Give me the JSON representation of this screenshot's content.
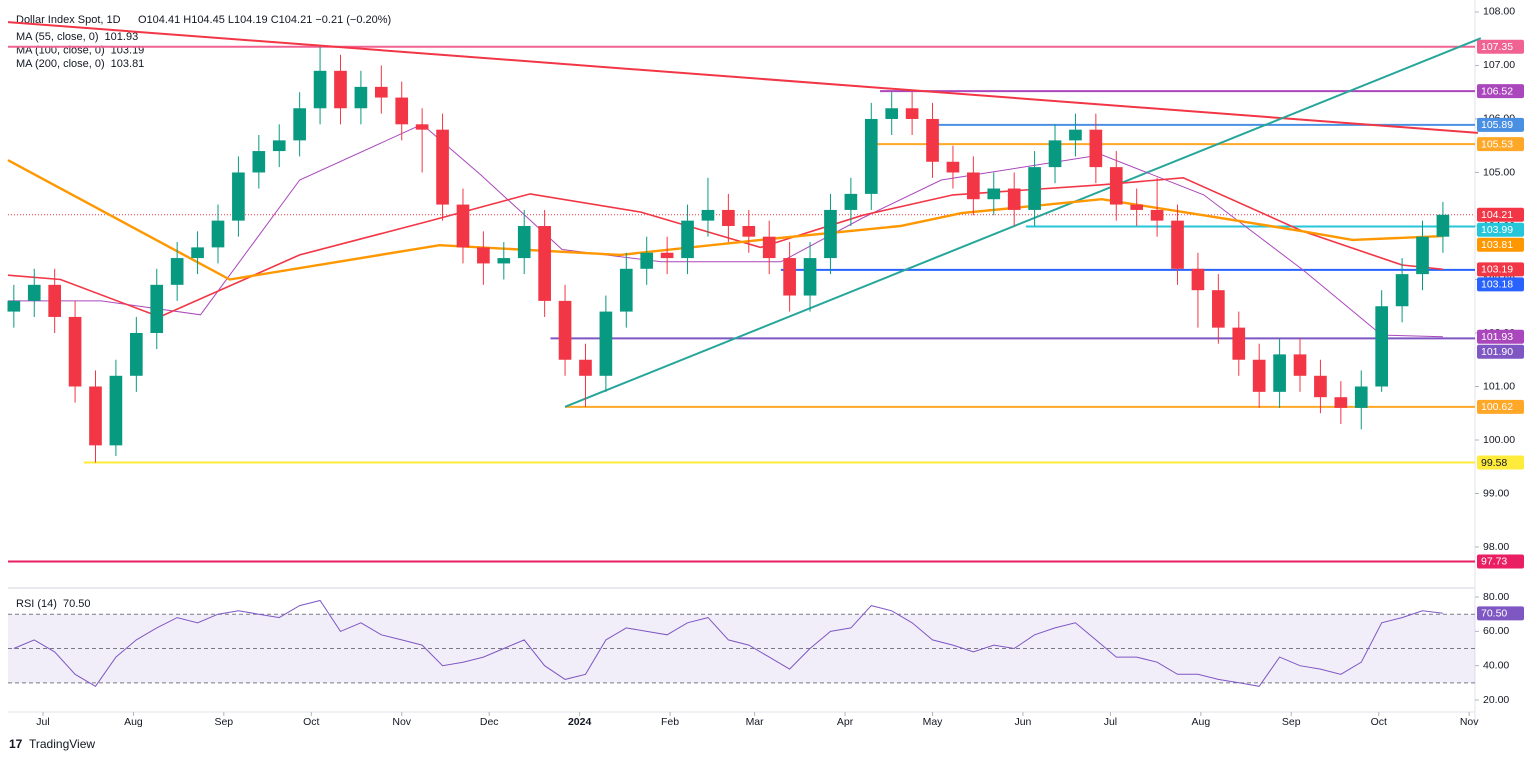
{
  "chart_data": [
    {
      "type": "candlestick",
      "title": "Dollar Index Spot, 1D",
      "ohlc_text": "O104.41  H104.45  L104.19  C104.21  −0.21 (−0.20%)",
      "up_color": "#089981",
      "down_color": "#f23645",
      "x": [
        -10,
        -3,
        4,
        11,
        18,
        25,
        32,
        39,
        46,
        53,
        60,
        67,
        74,
        81,
        88,
        95,
        102,
        109,
        116,
        123,
        130,
        137,
        144,
        151,
        158,
        165,
        172,
        179,
        186,
        193,
        200,
        207,
        214,
        221,
        228,
        235,
        242,
        249,
        256,
        263,
        270,
        277,
        284,
        291,
        298,
        305,
        312,
        319,
        326,
        333,
        340,
        347,
        354,
        361,
        368,
        375,
        382,
        389,
        396,
        403,
        410,
        417,
        424,
        431,
        438,
        445,
        452,
        459,
        466,
        473,
        480
      ],
      "open": [
        102.4,
        102.6,
        102.9,
        102.3,
        101.0,
        99.9,
        101.2,
        102.0,
        102.9,
        103.4,
        103.6,
        104.1,
        105.0,
        105.4,
        105.6,
        106.2,
        106.9,
        106.2,
        106.6,
        106.4,
        105.9,
        105.8,
        104.4,
        103.6,
        103.3,
        103.4,
        104.0,
        102.6,
        101.5,
        101.2,
        102.4,
        103.2,
        103.5,
        103.4,
        104.1,
        104.3,
        104.0,
        103.8,
        103.4,
        102.7,
        103.4,
        104.3,
        104.6,
        106.0,
        106.2,
        106.0,
        105.2,
        105.0,
        104.5,
        104.7,
        104.3,
        105.1,
        105.6,
        105.8,
        105.1,
        104.4,
        104.3,
        104.1,
        103.2,
        102.8,
        102.1,
        101.5,
        100.9,
        101.6,
        101.2,
        100.8,
        100.6,
        101.0,
        102.5,
        103.1,
        103.8
      ],
      "high": [
        102.9,
        103.2,
        103.2,
        102.6,
        101.3,
        101.5,
        102.3,
        103.2,
        103.7,
        103.9,
        104.4,
        105.3,
        105.7,
        105.9,
        106.5,
        107.35,
        107.2,
        106.9,
        107.0,
        106.7,
        106.2,
        106.1,
        104.7,
        103.9,
        103.7,
        104.3,
        104.3,
        102.9,
        101.8,
        102.7,
        103.5,
        103.8,
        103.8,
        104.4,
        104.9,
        104.6,
        104.3,
        104.1,
        103.7,
        103.7,
        104.6,
        104.9,
        106.3,
        106.5,
        106.5,
        106.3,
        105.5,
        105.3,
        105.0,
        105.0,
        105.4,
        105.9,
        106.1,
        106.1,
        105.4,
        104.7,
        104.9,
        104.4,
        103.5,
        103.1,
        102.4,
        101.8,
        101.9,
        101.9,
        101.5,
        101.1,
        101.3,
        102.8,
        103.4,
        104.1,
        104.45
      ],
      "low": [
        102.1,
        102.3,
        102.0,
        100.7,
        99.58,
        99.7,
        100.9,
        101.7,
        102.6,
        103.1,
        103.3,
        103.8,
        104.7,
        105.1,
        105.3,
        105.9,
        105.9,
        105.9,
        106.1,
        105.6,
        105.0,
        104.1,
        103.3,
        102.9,
        103.0,
        103.1,
        102.3,
        101.2,
        100.62,
        100.9,
        102.1,
        102.9,
        103.1,
        103.1,
        103.8,
        103.7,
        103.5,
        103.1,
        102.4,
        102.4,
        103.1,
        104.0,
        104.3,
        105.7,
        105.7,
        104.9,
        104.7,
        104.2,
        104.2,
        104.0,
        104.0,
        104.8,
        105.3,
        104.8,
        104.1,
        104.0,
        103.8,
        102.9,
        102.1,
        101.8,
        101.2,
        100.6,
        100.6,
        100.9,
        100.5,
        100.3,
        100.2,
        100.9,
        102.2,
        102.8,
        103.5
      ],
      "close": [
        102.6,
        102.9,
        102.3,
        101.0,
        99.9,
        101.2,
        102.0,
        102.9,
        103.4,
        103.6,
        104.1,
        105.0,
        105.4,
        105.6,
        106.2,
        106.9,
        106.2,
        106.6,
        106.4,
        105.9,
        105.8,
        104.4,
        103.6,
        103.3,
        103.4,
        104.0,
        102.6,
        101.5,
        101.2,
        102.4,
        103.2,
        103.5,
        103.4,
        104.1,
        104.3,
        104.0,
        103.8,
        103.4,
        102.7,
        103.4,
        104.3,
        104.6,
        106.0,
        106.2,
        106.0,
        105.2,
        105.0,
        104.5,
        104.7,
        104.3,
        105.1,
        105.6,
        105.8,
        105.1,
        104.4,
        104.3,
        104.1,
        103.2,
        102.8,
        102.1,
        101.5,
        100.9,
        101.6,
        101.2,
        100.8,
        100.6,
        101.0,
        102.5,
        103.1,
        103.8,
        104.21
      ],
      "series": [
        {
          "name": "MA (55, close, 0)",
          "color": "#ab47bc",
          "width": 1,
          "value": 101.93,
          "x": [
            -12,
            20,
            54,
            88,
            130,
            150,
            178,
            212,
            253,
            281,
            308,
            363,
            398,
            432,
            459,
            480
          ],
          "values": [
            102.6,
            102.6,
            102.34,
            104.86,
            105.9,
            104.96,
            103.56,
            103.33,
            103.33,
            104.15,
            104.86,
            105.33,
            104.58,
            103.18,
            101.96,
            101.93
          ]
        },
        {
          "name": "MA (100, close, 0)",
          "color": "#f23645",
          "width": 1.6,
          "value": 103.19,
          "x": [
            -12,
            6,
            40,
            88,
            133,
            167,
            205,
            246,
            281,
            312,
            363,
            391,
            432,
            466,
            480
          ],
          "values": [
            103.08,
            103.0,
            102.3,
            103.46,
            104.1,
            104.6,
            104.26,
            103.6,
            104.2,
            104.58,
            104.77,
            104.9,
            103.9,
            103.27,
            103.19
          ]
        },
        {
          "name": "MA (200, close, 0)",
          "color": "#ff9800",
          "width": 2.4,
          "value": 103.81,
          "x": [
            -12,
            64,
            136,
            198,
            246,
            294,
            315,
            363,
            398,
            432,
            449,
            480
          ],
          "values": [
            105.23,
            103.0,
            103.64,
            103.46,
            103.74,
            104.0,
            104.24,
            104.5,
            104.2,
            103.9,
            103.74,
            103.81
          ]
        }
      ],
      "levels": [
        {
          "value": 107.35,
          "color": "#f06292",
          "from": -12
        },
        {
          "value": 106.52,
          "color": "#ab47bc",
          "from": 287
        },
        {
          "value": 105.89,
          "color": "#4a90e2",
          "from": 304
        },
        {
          "value": 105.53,
          "color": "#ffa726",
          "from": 284
        },
        {
          "value": 104.21,
          "color": "#f23645",
          "from": -12,
          "style": "dotted"
        },
        {
          "value": 103.99,
          "color": "#26c6da",
          "from": 337
        },
        {
          "value": 103.18,
          "color": "#2962ff",
          "from": 253
        },
        {
          "value": {
            "value": 101.9,
            "label": "101.90"
          },
          "color": "#7e57c2",
          "from": 174
        },
        {
          "value": 100.62,
          "color": "#ffa726",
          "from": 179
        },
        {
          "value": 99.58,
          "color": "#ffeb3b",
          "from": 14
        },
        {
          "value": 97.73,
          "color": "#e91e63",
          "from": -12
        }
      ],
      "trendlines": [
        {
          "color": "#f23645",
          "x": [
            -12,
            492
          ],
          "y": [
            107.81,
            105.74
          ]
        },
        {
          "color": "#26a69a",
          "x": [
            179,
            493
          ],
          "y": [
            100.62,
            107.51
          ]
        }
      ],
      "xlim": [
        -12,
        491
      ],
      "ylim": [
        97.29,
        108.13
      ],
      "xticks": [
        {
          "value": 0,
          "label": "Jul"
        },
        {
          "value": 31,
          "label": "Aug"
        },
        {
          "value": 62,
          "label": "Sep"
        },
        {
          "value": 92,
          "label": "Oct"
        },
        {
          "value": 123,
          "label": "Nov"
        },
        {
          "value": 153,
          "label": "Dec"
        },
        {
          "value": 184,
          "label": "2024"
        },
        {
          "value": 215,
          "label": "Feb"
        },
        {
          "value": 244,
          "label": "Mar"
        },
        {
          "value": 275,
          "label": "Apr"
        },
        {
          "value": 305,
          "label": "May"
        },
        {
          "value": 336,
          "label": "Jun"
        },
        {
          "value": 366,
          "label": "Jul"
        },
        {
          "value": 397,
          "label": "Aug"
        },
        {
          "value": 428,
          "label": "Sep"
        },
        {
          "value": 458,
          "label": "Oct"
        },
        {
          "value": 489,
          "label": "Nov"
        }
      ],
      "yticks": [
        {
          "value": 98,
          "label": "98.00"
        },
        {
          "value": 99,
          "label": "99.00"
        },
        {
          "value": 100,
          "label": "100.00"
        },
        {
          "value": 101,
          "label": "101.00"
        },
        {
          "value": 102,
          "label": "102.00"
        },
        {
          "value": 103,
          "label": "103.00"
        },
        {
          "value": 104,
          "label": "104.00"
        },
        {
          "value": 105,
          "label": "105.00"
        },
        {
          "value": 106,
          "label": "106.00"
        },
        {
          "value": 107,
          "label": "107.00"
        },
        {
          "value": 108,
          "label": "108.00"
        }
      ],
      "footer": "TradingView"
    },
    {
      "type": "line",
      "title": "RSI (14)",
      "last": {
        "value": 70.5,
        "label": "70.50"
      },
      "color": "#7e57c2",
      "band": [
        30,
        70
      ],
      "midline": 50,
      "x": [
        -10,
        -3,
        4,
        11,
        18,
        25,
        32,
        39,
        46,
        53,
        60,
        67,
        74,
        81,
        88,
        95,
        102,
        109,
        116,
        123,
        130,
        137,
        144,
        151,
        158,
        165,
        172,
        179,
        186,
        193,
        200,
        207,
        214,
        221,
        228,
        235,
        242,
        249,
        256,
        263,
        270,
        277,
        284,
        291,
        298,
        305,
        312,
        319,
        326,
        333,
        340,
        347,
        354,
        361,
        368,
        375,
        382,
        389,
        396,
        403,
        410,
        417,
        424,
        431,
        438,
        445,
        452,
        459,
        466,
        473,
        480
      ],
      "values": [
        50,
        55,
        48,
        35,
        28,
        45,
        55,
        62,
        68,
        65,
        70,
        72,
        70,
        68,
        75,
        78,
        60,
        65,
        58,
        55,
        52,
        40,
        42,
        45,
        50,
        55,
        40,
        32,
        35,
        55,
        62,
        60,
        58,
        65,
        68,
        55,
        52,
        45,
        38,
        50,
        60,
        62,
        75,
        72,
        65,
        55,
        52,
        48,
        52,
        50,
        58,
        62,
        65,
        55,
        45,
        45,
        42,
        35,
        35,
        32,
        30,
        28,
        45,
        40,
        38,
        35,
        42,
        65,
        68,
        72,
        70.5
      ],
      "xlim": [
        -12,
        491
      ],
      "ylim": [
        13,
        84.1
      ],
      "yticks": [
        {
          "value": 20,
          "label": "20.00"
        },
        {
          "value": 40,
          "label": "40.00"
        },
        {
          "value": 60,
          "label": "60.00"
        },
        {
          "value": 80,
          "label": "80.00"
        }
      ]
    }
  ]
}
